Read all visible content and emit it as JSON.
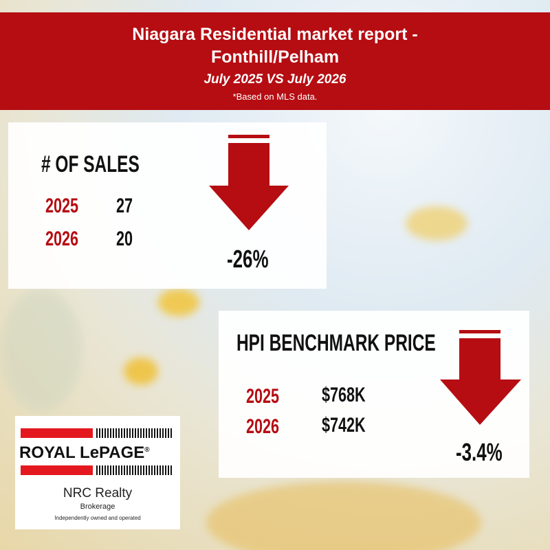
{
  "header": {
    "title_lines": [
      "Niagara Residential market report -",
      "Fonthill/Pelham"
    ],
    "subtitle": "July 2025 VS July 2026",
    "note": "*Based on MLS data."
  },
  "sales": {
    "title": "# OF SALES",
    "rows": [
      [
        "2025",
        27
      ],
      [
        "2026",
        20
      ]
    ],
    "change": "-26%"
  },
  "hpi": {
    "title": "HPI BENCHMARK PRICE",
    "rows": [
      [
        "2025",
        "$768K"
      ],
      [
        "2026",
        "$742K"
      ]
    ],
    "change": "-3.4%"
  },
  "logo": {
    "brand": "ROYAL LePAGE",
    "registered": "®",
    "office": "NRC Realty",
    "type": "Brokerage",
    "tagline": "Independently owned and operated"
  }
}
